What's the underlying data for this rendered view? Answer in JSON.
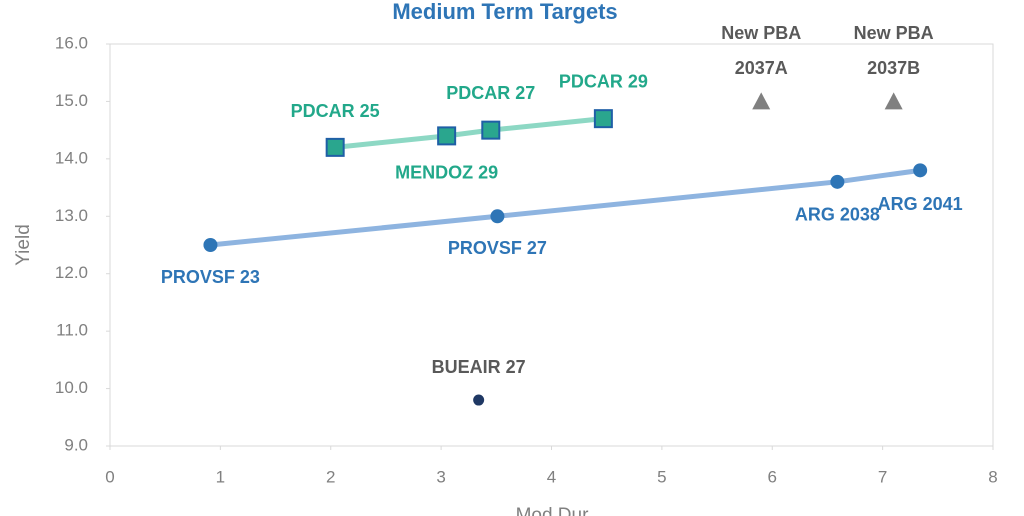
{
  "chart_data": {
    "type": "scatter",
    "title": "Medium Term Targets",
    "x_label": "Mod Dur",
    "y_label": "Yield",
    "xlim": [
      0,
      8
    ],
    "xticks": [
      0,
      1,
      2,
      3,
      4,
      5,
      6,
      7,
      8
    ],
    "ylim": [
      9,
      16
    ],
    "yticks": [
      {
        "value": 9,
        "label": "9.0"
      },
      {
        "value": 10,
        "label": "10.0"
      },
      {
        "value": 11,
        "label": "11.0"
      },
      {
        "value": 12,
        "label": "12.0"
      },
      {
        "value": 13,
        "label": "13.0"
      },
      {
        "value": 14,
        "label": "14.0"
      },
      {
        "value": 15,
        "label": "15.0"
      },
      {
        "value": 16,
        "label": "16.0"
      }
    ],
    "series": [
      {
        "marker": "circle",
        "color": "#2e75b6",
        "line_color": "#8eb4e0",
        "label_color": "#2e75b6",
        "line": true,
        "x": [
          0.91,
          3.51,
          6.59,
          7.34
        ],
        "values": [
          12.5,
          13.0,
          13.6,
          13.8
        ],
        "labels": [
          [
            "PROVSF 23"
          ],
          [
            "PROVSF 27"
          ],
          [
            "ARG 2038"
          ],
          [
            "ARG 2041"
          ]
        ]
      },
      {
        "marker": "square",
        "color": "#2aa68e",
        "border": "#1f5fa6",
        "line_color": "#8dd8c4",
        "label_color": "#22a88a",
        "line": true,
        "x": [
          2.04,
          3.05,
          3.45,
          4.47
        ],
        "values": [
          14.2,
          14.4,
          14.5,
          14.7
        ],
        "labels": [
          [
            "PDCAR 25"
          ],
          [
            "MENDOZ 29"
          ],
          [
            "PDCAR 27"
          ],
          [
            "PDCAR 29"
          ]
        ]
      },
      {
        "marker": "circle-small",
        "color": "#1f3864",
        "label_color": "#595959",
        "line": false,
        "x": [
          3.34
        ],
        "values": [
          9.8
        ],
        "labels": [
          [
            "BUEAIR 27"
          ]
        ]
      },
      {
        "marker": "triangle",
        "color": "#808080",
        "label_color": "#595959",
        "line": false,
        "x": [
          5.9,
          7.1
        ],
        "values": [
          15.0,
          15.0
        ],
        "labels": [
          [
            "New PBA",
            "2037A"
          ],
          [
            "New PBA",
            "2037B"
          ]
        ]
      }
    ]
  }
}
